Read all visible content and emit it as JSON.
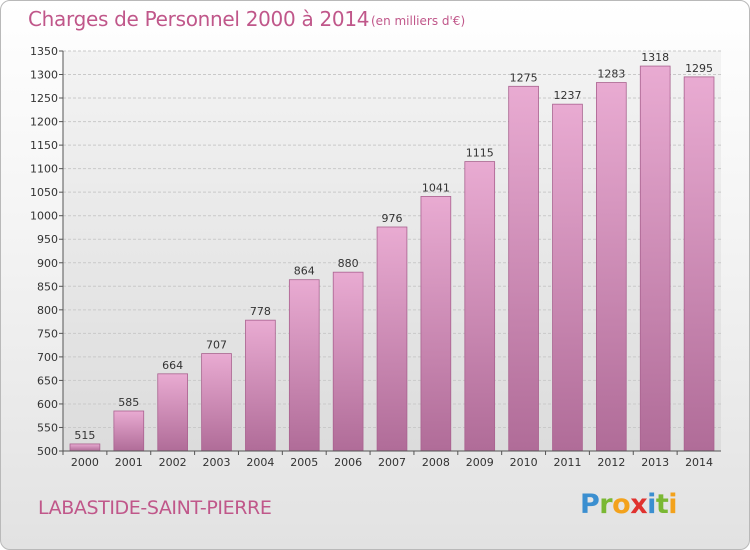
{
  "header": {
    "title": "Charges de Personnel 2000 à 2014",
    "subtitle": "(en milliers d'€)"
  },
  "footer": {
    "commune": "LABASTIDE-SAINT-PIERRE",
    "logo": {
      "text": "Proxiti",
      "letters": [
        {
          "char": "P",
          "color": "#3b8fd0"
        },
        {
          "char": "r",
          "color": "#7ab833"
        },
        {
          "char": "o",
          "color": "#f3a21c"
        },
        {
          "char": "x",
          "color": "#e0322f"
        },
        {
          "char": "i",
          "color": "#3b8fd0"
        },
        {
          "char": "t",
          "color": "#7ab833"
        },
        {
          "char": "i",
          "color": "#f3a21c"
        }
      ]
    }
  },
  "chart_data": {
    "type": "bar",
    "categories": [
      "2000",
      "2001",
      "2002",
      "2003",
      "2004",
      "2005",
      "2006",
      "2007",
      "2008",
      "2009",
      "2010",
      "2011",
      "2012",
      "2013",
      "2014"
    ],
    "values": [
      515,
      585,
      664,
      707,
      778,
      864,
      880,
      976,
      1041,
      1115,
      1275,
      1237,
      1283,
      1318,
      1295
    ],
    "ylim": [
      500,
      1350
    ],
    "yticks": [
      500,
      550,
      600,
      650,
      700,
      750,
      800,
      850,
      900,
      950,
      1000,
      1050,
      1100,
      1150,
      1200,
      1250,
      1300,
      1350
    ],
    "grid": true,
    "colors": {
      "bar_top": "#e9abd2",
      "bar_bottom": "#b06c98",
      "bar_edge": "#a9628f",
      "grid": "#c9c9c9",
      "text": "#333333",
      "accent": "#c0578a"
    }
  }
}
